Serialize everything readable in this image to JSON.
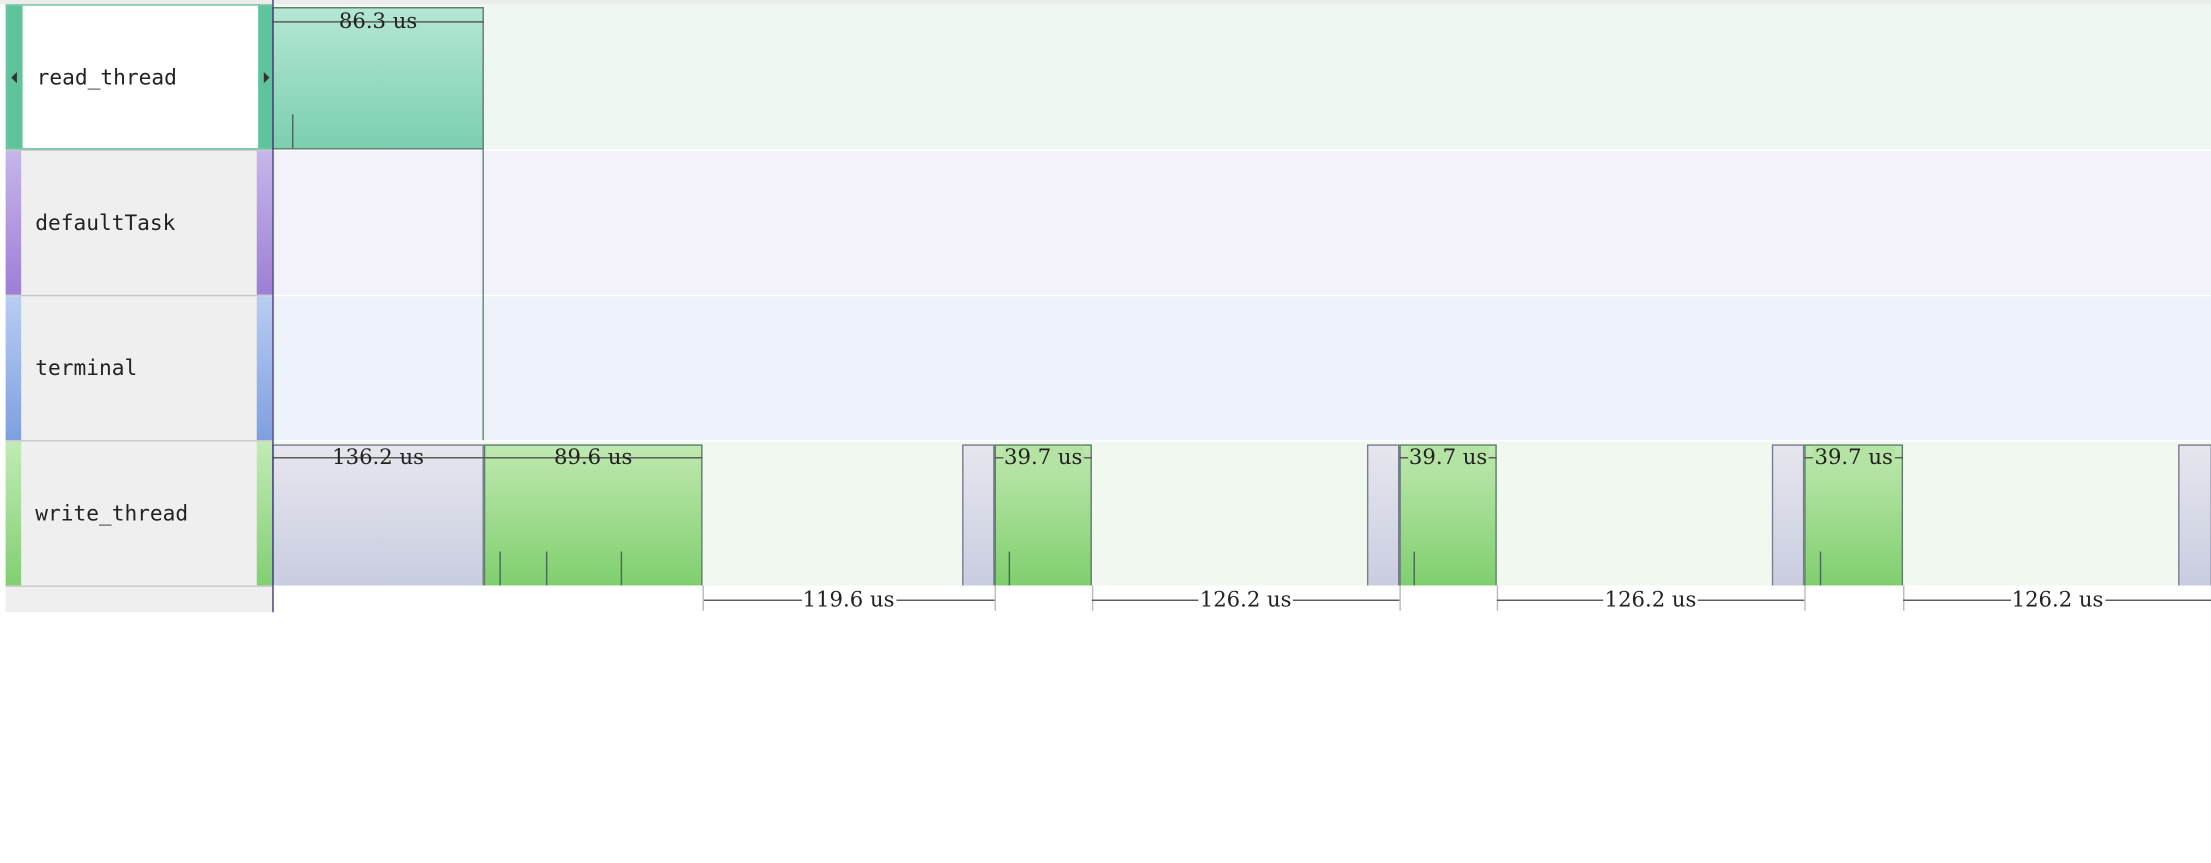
{
  "threads": [
    {
      "name": "read_thread",
      "color": "#66c7a3",
      "selected": true
    },
    {
      "name": "defaultTask",
      "color": "#a58ad6"
    },
    {
      "name": "terminal",
      "color": "#8aa8e0"
    },
    {
      "name": "write_thread",
      "color": "#7ccb6e"
    }
  ],
  "read_thread": {
    "block_label": "86.3 us"
  },
  "write_thread": {
    "block_labels": [
      "136.2 us",
      "89.6 us",
      "39.7 us",
      "39.7 us",
      "39.7 us"
    ]
  },
  "gaps": [
    "119.6 us",
    "126.2 us",
    "126.2 us",
    "126.2 us"
  ]
}
